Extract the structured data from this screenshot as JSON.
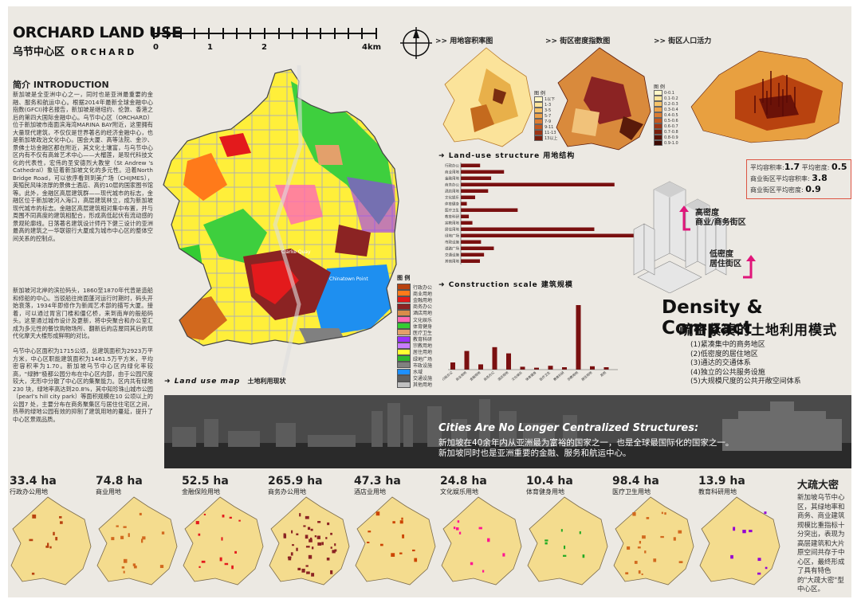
{
  "header": {
    "title": "ORCHARD LAND USE",
    "subtitle_cn": "乌节中心区",
    "subtitle_en": "ORCHARD",
    "scale": [
      "0",
      "1",
      "2",
      "4km"
    ]
  },
  "intro": {
    "heading": "简介 INTRODUCTION",
    "paragraph1": "新加坡是全亚洲中心之一，同时也是亚洲最重要的金融、服务和航运中心。根据2014年最新全球金融中心指数(GFCI)排名报告，新加坡是继纽约、伦敦、香港之后的第四大国际金融中心。乌节中心区（ORCHARD）位于新加坡市南面滨海湾MARINA BAY附近，这里拥有大量现代建筑，不仅仅是世界著名的经济金融中心，也是新加坡政治文化中心。国会大厦、高等法院、金沙、景佛士坊金融区都在附近，其文化土壤富，与乌节中心区内有不仅有高耸艺术中心——大榴莲，是现代科技文化的代表性，宏伟的圣安德烈大教堂（St Andrew 's Cathedral）象征着新加坡文化的多元性。沿着North Bridge Road，可以依序看到到美广场（CHIJMES），英殖民风味浓厚的景佛士酒店、高约10层的国家图书馆等。此外，金融区高层建筑群——现代城市的标志，金融区位于新加坡河入海口，高层建筑林立，成为新加坡现代城市的标志。金融区高层建筑相对集中布置，并与周围不同高度的建筑相配合，形成高低起伏有流动感的景观轮廓线。日落著名建筑设计师丹下健三设计的亚洲最高的建筑之一华联银行大厦成为城市中心区的整体空间关系的控制点。",
    "paragraph2": "新加坡河北岸的滨拉码头，1860至1870年代曾是造船和修船的中心。当驳船往岗面蓬河运行时期时，码头开始衰落，1934年即修作为新闻艺术部的描写大厦。接着，可以通过胃宫门楼和僵亿桥，来到南岸的般船码头。这里通过城市设计及更新，将中央聚合和办公室汇成为多元性的餐饮购物场所、翻新后的店屋同其后的现代化摩天大楼形成鲜明的对比。",
    "paragraph3": "乌节中心区面积为1715公顷，总建筑面积为2923万平方米，中心区职能建筑面积为1461.5万平方米，平均密容积率为1.70。新加坡乌节中心区内绿化率较高，\"绿肺\"极都公园分布在中心区内部，由于公园尺度较大，无形中分散了中心区的集聚能力。区内共有绿地230 块，绿地率高达到20.8%，其中知珍珠山城市公园（pearl's hill city park）等面积规模在10 公顷以上的公园7 处，主要分布在商务聚集区与居住住宅区之间，热带的绿地公园有效的抑制了建筑用地的蔓延，提升了中心区景观品质。"
  },
  "map_section": {
    "title": "Land use map",
    "title_cn": "土地利用现状",
    "labels": [
      "Clarke Quay",
      "Chinatown Point"
    ]
  },
  "legend": {
    "title": "图 例",
    "items": [
      {
        "label": "行政办公",
        "color": "#b8420f"
      },
      {
        "label": "商业用地",
        "color": "#ff7a1a"
      },
      {
        "label": "金融用地",
        "color": "#e31a1c"
      },
      {
        "label": "商务办公",
        "color": "#8b2323"
      },
      {
        "label": "酒店用地",
        "color": "#d98c4a"
      },
      {
        "label": "文化娱乐",
        "color": "#ff69b4"
      },
      {
        "label": "体育健身",
        "color": "#33cc33"
      },
      {
        "label": "医疗卫生",
        "color": "#e3a06b"
      },
      {
        "label": "教育科研",
        "color": "#9b30ff"
      },
      {
        "label": "宗教用地",
        "color": "#c77dff"
      },
      {
        "label": "居住用地",
        "color": "#ffff33"
      },
      {
        "label": "绿地广场",
        "color": "#2eb82e"
      },
      {
        "label": "市政设施",
        "color": "#808080"
      },
      {
        "label": "水域",
        "color": "#1e90ff"
      },
      {
        "label": "交通设施",
        "color": "#606060"
      },
      {
        "label": "其他用地",
        "color": "#c0c0c0"
      }
    ]
  },
  "mini_maps": {
    "m1": {
      "title": ">> 用地容积率图",
      "legend_title": "图 例",
      "items": [
        "1以下",
        "1-3",
        "3-5",
        "5-7",
        "7-9",
        "9-11",
        "11-13",
        "13以上"
      ]
    },
    "m2": {
      "title": ">> 街区密度指数图",
      "legend_title": "图 例",
      "items": [
        "0-0.1",
        "0.1-0.2",
        "0.2-0.3",
        "0.3-0.4",
        "0.4-0.5",
        "0.5-0.6",
        "0.6-0.7",
        "0.7-0.8",
        "0.8-0.9",
        "0.9-1.0"
      ]
    },
    "m3": {
      "title": ">> 街区人口活力"
    }
  },
  "stats": {
    "rows": [
      {
        "label": "平均容积率:",
        "value": "1.7",
        "label2": "平均密度:",
        "value2": "0.5"
      },
      {
        "label": "商业街区平均容积率:",
        "value": "3.8"
      },
      {
        "label": "商业街区平均密度:",
        "value": "0.9"
      }
    ]
  },
  "tags": {
    "high": [
      "高密度",
      "商业/商务街区"
    ],
    "low": [
      "低密度",
      "居住街区"
    ]
  },
  "density": {
    "title": "Density & Compact",
    "subtitle": "疏密紧凑的土地利用模式",
    "points": [
      "(1)紧凑集中的商务地区",
      "(2)低密度的居住地区",
      "(3)通达的交通体系",
      "(4)独立的公共服务设施",
      "(5)大规模尺度的公共开敞空间体系"
    ]
  },
  "banner": {
    "title": "Cities Are No Longer Centralized Structures:",
    "line1": "新加坡在40余年内从亚洲最为富裕的国家之一，也是全球最国际化的国家之一。",
    "line2": "新加坡同时也是亚洲重要的金融、服务和航运中心。"
  },
  "areas": [
    {
      "value": "33.4 ha",
      "label": "行政办公用地",
      "color": "#b8420f"
    },
    {
      "value": "74.8 ha",
      "label": "商业用地",
      "color": "#d2691e"
    },
    {
      "value": "52.5 ha",
      "label": "金融保险用地",
      "color": "#e31a1c"
    },
    {
      "value": "265.9 ha",
      "label": "商务办公用地",
      "color": "#8b2323"
    },
    {
      "value": "47.3 ha",
      "label": "酒店业用地",
      "color": "#cc4400"
    },
    {
      "value": "24.8 ha",
      "label": "文化娱乐用地",
      "color": "#ff1493"
    },
    {
      "value": "10.4 ha",
      "label": "体育健身用地",
      "color": "#22aa22"
    },
    {
      "value": "98.4 ha",
      "label": "医疗卫生用地",
      "color": "#d2691e"
    },
    {
      "value": "13.9 ha",
      "label": "教育科研用地",
      "color": "#9400d3"
    }
  ],
  "conclusion": {
    "title": "大疏大密",
    "text": "新加坡乌节中心区，其绿地率和商务、商业建筑规模比重指标十分突出，表现为高层建筑和大片原空间共存于中心区，最终形成了具有特色的\"大疏大密\"型中心区。"
  },
  "chart_data": [
    {
      "type": "bar",
      "title": "Land-use structure 用地结构",
      "orientation": "horizontal",
      "categories": [
        "行政办公",
        "商业用地",
        "金融用地",
        "商务办公",
        "酒店用地",
        "文化娱乐",
        "体育健身",
        "医疗卫生",
        "教育科研",
        "宗教用地",
        "居住用地",
        "绿地广场",
        "市政设施",
        "道路广场",
        "交通设施",
        "其他用地"
      ],
      "values": [
        33.4,
        74.8,
        52.5,
        265.9,
        47.3,
        24.8,
        10.4,
        98.4,
        13.9,
        20.1,
        231.0,
        352.4,
        35.0,
        57.2,
        40.2,
        33.1
      ],
      "xlim": [
        0,
        400
      ]
    },
    {
      "type": "bar",
      "title": "Construction scale 建筑规模",
      "categories": [
        "行政办公",
        "商业用地",
        "金融用地",
        "商务办公",
        "酒店用地",
        "文化娱乐",
        "体育健身",
        "医疗卫生",
        "教育科研",
        "宗教用地",
        "居住用地",
        "其他"
      ],
      "values": [
        1.5,
        3.9,
        1.1,
        4.7,
        3.4,
        0.6,
        0.4,
        0.8,
        0.5,
        13.5,
        0.7,
        0.5
      ],
      "ylim": [
        0,
        15
      ]
    }
  ]
}
